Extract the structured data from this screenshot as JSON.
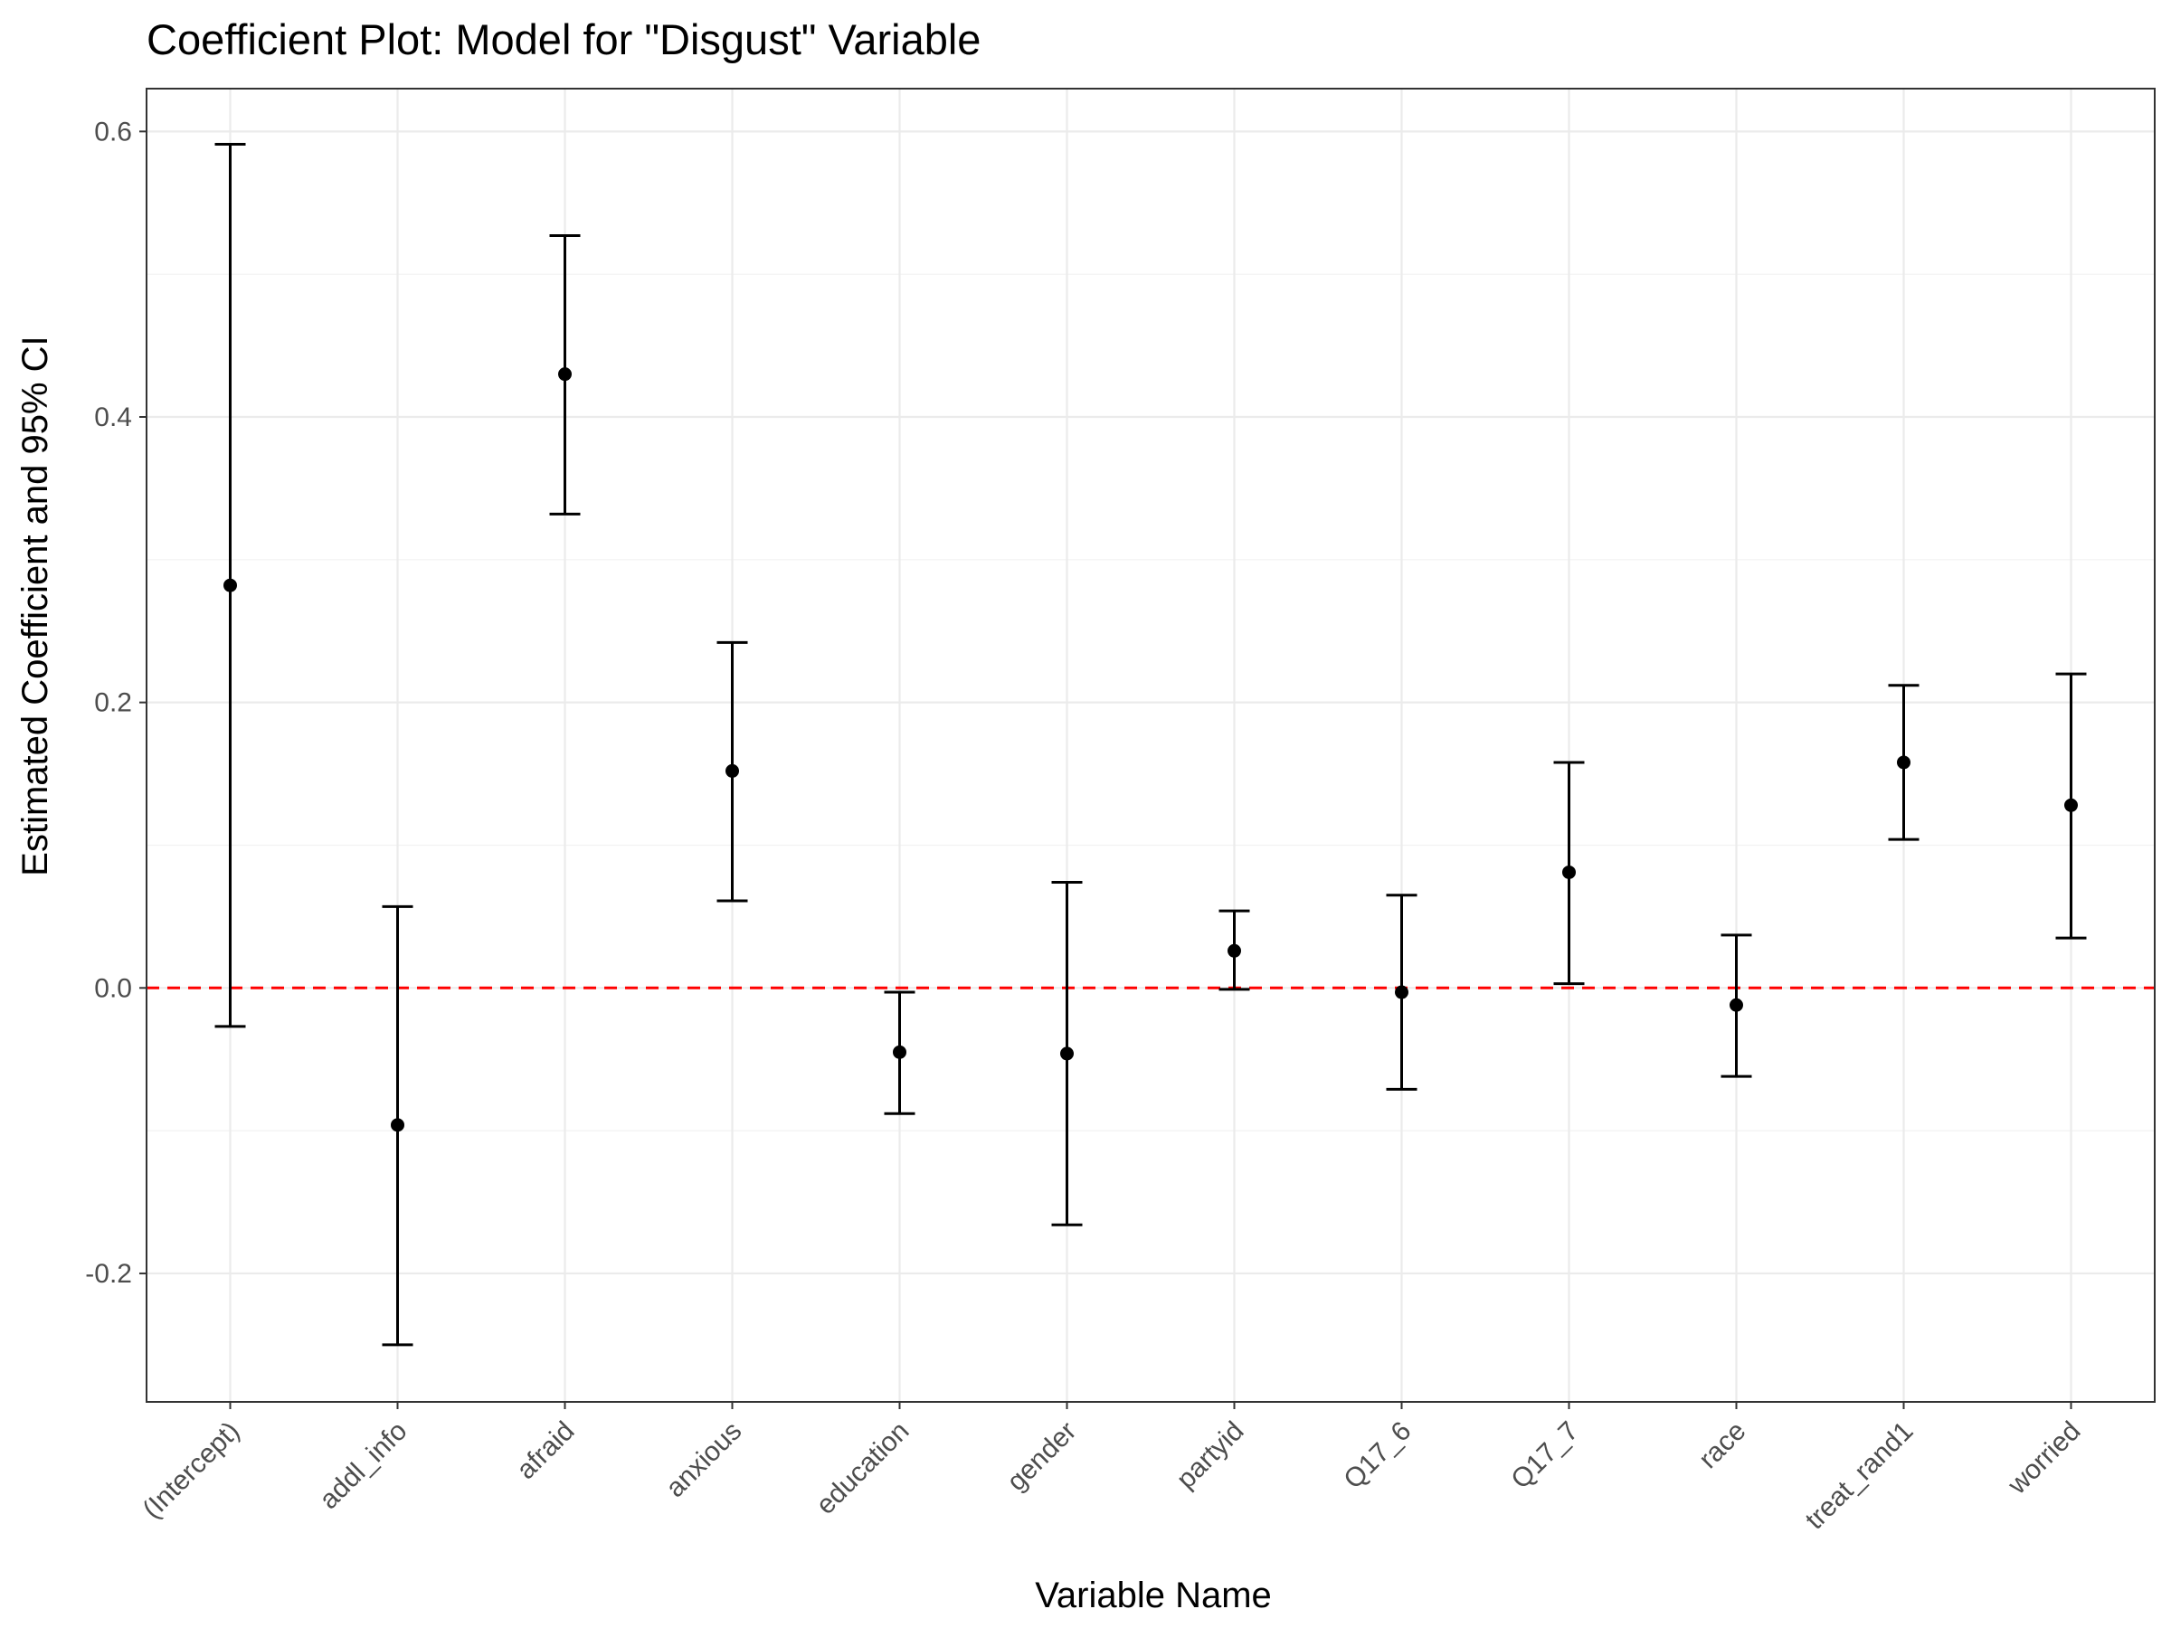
{
  "chart_data": {
    "type": "scatter",
    "subtype": "coefficient-plot-with-error-bars",
    "title": "Coefficient Plot: Model for \"Disgust\" Variable",
    "xlabel": "Variable Name",
    "ylabel": "Estimated Coefficient and 95% CI",
    "ylim": [
      -0.29,
      0.63
    ],
    "yticks": [
      -0.2,
      0.0,
      0.2,
      0.4,
      0.6
    ],
    "ytick_labels": [
      "-0.2",
      "0.0",
      "0.2",
      "0.4",
      "0.6"
    ],
    "grid": true,
    "reference_line": {
      "y": 0.0,
      "style": "dashed",
      "color": "#ff0000"
    },
    "categories": [
      "(Intercept)",
      "addl_info",
      "afraid",
      "anxious",
      "education",
      "gender",
      "partyid",
      "Q17_6",
      "Q17_7",
      "race",
      "treat_rand1",
      "worried"
    ],
    "estimates": [
      0.282,
      -0.096,
      0.43,
      0.152,
      -0.045,
      -0.046,
      0.026,
      -0.003,
      0.081,
      -0.012,
      0.158,
      0.128
    ],
    "lower": [
      -0.027,
      -0.25,
      0.332,
      0.061,
      -0.088,
      -0.166,
      -0.001,
      -0.071,
      0.003,
      -0.062,
      0.104,
      0.035
    ],
    "upper": [
      0.591,
      0.057,
      0.527,
      0.242,
      -0.003,
      0.074,
      0.054,
      0.065,
      0.158,
      0.037,
      0.212,
      0.22
    ],
    "colors": {
      "point": "#000000",
      "errorbar": "#000000",
      "grid": "#ebebeb",
      "panel_border": "#333333"
    }
  }
}
